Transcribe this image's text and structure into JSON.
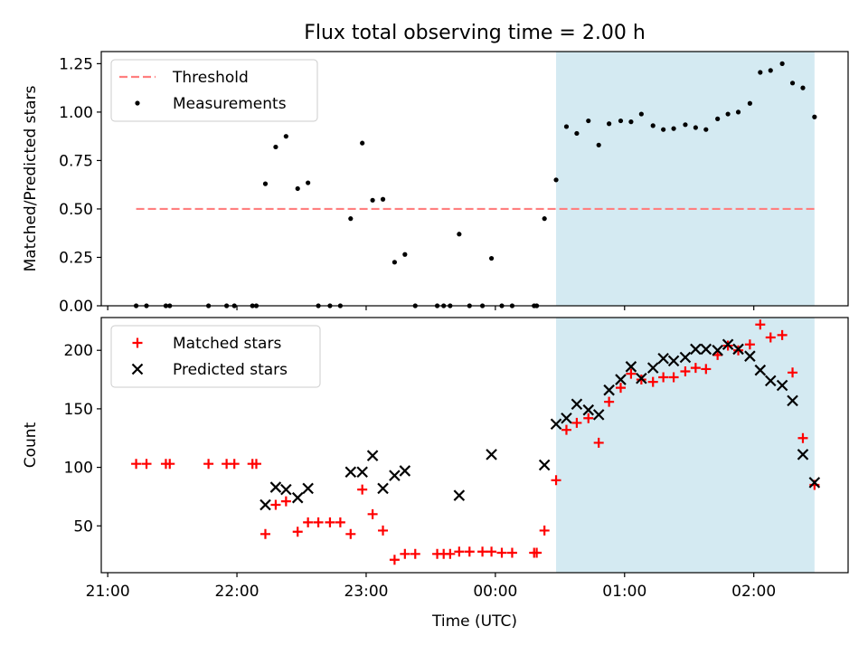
{
  "figure": {
    "title": "Flux total observing time = 2.00 h",
    "xlabel": "Time (UTC)",
    "x_tick_labels": [
      "21:00",
      "22:00",
      "23:00",
      "00:00",
      "01:00",
      "02:00"
    ],
    "x_ticks_hours": [
      21,
      22,
      23,
      24,
      25,
      26
    ],
    "xlim_hours": [
      20.95,
      26.73
    ],
    "shaded_span_hours": [
      24.47,
      26.47
    ],
    "shade_color": "#add8e6"
  },
  "chart_data": [
    {
      "type": "scatter",
      "ylabel": "Matched/Predicted stars",
      "ylim": [
        0,
        1.3125
      ],
      "y_ticks": [
        0,
        0.25,
        0.5,
        0.75,
        1.0,
        1.25
      ],
      "y_tick_labels": [
        "0.00",
        "0.25",
        "0.50",
        "0.75",
        "1.00",
        "1.25"
      ],
      "legend_position": "top-left",
      "threshold": {
        "name": "Threshold",
        "value": 0.5,
        "x_range_hours": [
          21.22,
          26.47
        ],
        "color": "#ff7f7f"
      },
      "series": [
        {
          "name": "Measurements",
          "color": "#000000",
          "points": [
            [
              21.22,
              0
            ],
            [
              21.3,
              0
            ],
            [
              21.45,
              0
            ],
            [
              21.48,
              0
            ],
            [
              21.78,
              0
            ],
            [
              21.92,
              0
            ],
            [
              21.98,
              0
            ],
            [
              22.12,
              0
            ],
            [
              22.15,
              0
            ],
            [
              22.22,
              0.63
            ],
            [
              22.3,
              0.82
            ],
            [
              22.38,
              0.875
            ],
            [
              22.47,
              0.605
            ],
            [
              22.55,
              0.635
            ],
            [
              22.63,
              0
            ],
            [
              22.72,
              0
            ],
            [
              22.8,
              0
            ],
            [
              22.88,
              0.45
            ],
            [
              22.97,
              0.84
            ],
            [
              23.05,
              0.545
            ],
            [
              23.13,
              0.55
            ],
            [
              23.22,
              0.225
            ],
            [
              23.3,
              0.265
            ],
            [
              23.38,
              0
            ],
            [
              23.55,
              0
            ],
            [
              23.6,
              0
            ],
            [
              23.65,
              0
            ],
            [
              23.72,
              0.37
            ],
            [
              23.8,
              0
            ],
            [
              23.9,
              0
            ],
            [
              23.97,
              0.245
            ],
            [
              24.05,
              0
            ],
            [
              24.13,
              0
            ],
            [
              24.3,
              0
            ],
            [
              24.32,
              0
            ],
            [
              24.38,
              0.45
            ],
            [
              24.47,
              0.65
            ],
            [
              24.55,
              0.925
            ],
            [
              24.63,
              0.89
            ],
            [
              24.72,
              0.955
            ],
            [
              24.8,
              0.83
            ],
            [
              24.88,
              0.94
            ],
            [
              24.97,
              0.955
            ],
            [
              25.05,
              0.95
            ],
            [
              25.13,
              0.99
            ],
            [
              25.22,
              0.93
            ],
            [
              25.3,
              0.91
            ],
            [
              25.38,
              0.915
            ],
            [
              25.47,
              0.935
            ],
            [
              25.55,
              0.92
            ],
            [
              25.63,
              0.91
            ],
            [
              25.72,
              0.965
            ],
            [
              25.8,
              0.99
            ],
            [
              25.88,
              1.0
            ],
            [
              25.97,
              1.045
            ],
            [
              26.05,
              1.205
            ],
            [
              26.13,
              1.215
            ],
            [
              26.22,
              1.25
            ],
            [
              26.3,
              1.15
            ],
            [
              26.38,
              1.125
            ],
            [
              26.47,
              0.975
            ]
          ]
        }
      ]
    },
    {
      "type": "scatter",
      "ylabel": "Count",
      "ylim": [
        10,
        228
      ],
      "y_ticks": [
        50,
        100,
        150,
        200
      ],
      "y_tick_labels": [
        "50",
        "100",
        "150",
        "200"
      ],
      "legend_position": "top-left",
      "series": [
        {
          "name": "Matched stars",
          "marker": "plus",
          "color": "#ff0000",
          "points": [
            [
              21.22,
              103
            ],
            [
              21.3,
              103
            ],
            [
              21.45,
              103
            ],
            [
              21.48,
              103
            ],
            [
              21.78,
              103
            ],
            [
              21.92,
              103
            ],
            [
              21.98,
              103
            ],
            [
              22.12,
              103
            ],
            [
              22.15,
              103
            ],
            [
              22.22,
              43
            ],
            [
              22.3,
              68
            ],
            [
              22.38,
              71
            ],
            [
              22.47,
              45
            ],
            [
              22.55,
              53
            ],
            [
              22.63,
              53
            ],
            [
              22.72,
              53
            ],
            [
              22.8,
              53
            ],
            [
              22.88,
              43
            ],
            [
              22.97,
              81
            ],
            [
              23.05,
              60
            ],
            [
              23.13,
              46
            ],
            [
              23.22,
              21
            ],
            [
              23.3,
              26
            ],
            [
              23.38,
              26
            ],
            [
              23.55,
              26
            ],
            [
              23.6,
              26
            ],
            [
              23.65,
              26
            ],
            [
              23.72,
              28
            ],
            [
              23.8,
              28
            ],
            [
              23.9,
              28
            ],
            [
              23.97,
              28
            ],
            [
              24.05,
              27
            ],
            [
              24.13,
              27
            ],
            [
              24.3,
              27
            ],
            [
              24.32,
              27
            ],
            [
              24.38,
              46
            ],
            [
              24.47,
              89
            ],
            [
              24.55,
              132
            ],
            [
              24.63,
              138
            ],
            [
              24.72,
              142
            ],
            [
              24.8,
              121
            ],
            [
              24.88,
              156
            ],
            [
              24.97,
              168
            ],
            [
              25.05,
              180
            ],
            [
              25.13,
              175
            ],
            [
              25.22,
              173
            ],
            [
              25.3,
              177
            ],
            [
              25.38,
              177
            ],
            [
              25.47,
              182
            ],
            [
              25.55,
              185
            ],
            [
              25.63,
              184
            ],
            [
              25.72,
              196
            ],
            [
              25.8,
              204
            ],
            [
              25.88,
              200
            ],
            [
              25.97,
              205
            ],
            [
              26.05,
              222
            ],
            [
              26.13,
              211
            ],
            [
              26.22,
              213
            ],
            [
              26.3,
              181
            ],
            [
              26.38,
              125
            ],
            [
              26.47,
              85
            ]
          ]
        },
        {
          "name": "Predicted stars",
          "marker": "x",
          "color": "#000000",
          "points": [
            [
              22.22,
              68
            ],
            [
              22.3,
              83
            ],
            [
              22.38,
              81
            ],
            [
              22.47,
              74
            ],
            [
              22.55,
              82
            ],
            [
              22.88,
              96
            ],
            [
              22.97,
              96
            ],
            [
              23.05,
              110
            ],
            [
              23.13,
              82
            ],
            [
              23.22,
              93
            ],
            [
              23.3,
              97
            ],
            [
              23.72,
              76
            ],
            [
              23.97,
              111
            ],
            [
              24.38,
              102
            ],
            [
              24.47,
              137
            ],
            [
              24.55,
              142
            ],
            [
              24.63,
              154
            ],
            [
              24.72,
              149
            ],
            [
              24.8,
              145
            ],
            [
              24.88,
              166
            ],
            [
              24.97,
              175
            ],
            [
              25.05,
              186
            ],
            [
              25.13,
              176
            ],
            [
              25.22,
              185
            ],
            [
              25.3,
              193
            ],
            [
              25.38,
              191
            ],
            [
              25.47,
              194
            ],
            [
              25.55,
              201
            ],
            [
              25.63,
              201
            ],
            [
              25.72,
              200
            ],
            [
              25.8,
              205
            ],
            [
              25.88,
              201
            ],
            [
              25.97,
              195
            ],
            [
              26.05,
              183
            ],
            [
              26.13,
              174
            ],
            [
              26.22,
              170
            ],
            [
              26.3,
              157
            ],
            [
              26.38,
              111
            ],
            [
              26.47,
              87
            ]
          ]
        }
      ]
    }
  ]
}
